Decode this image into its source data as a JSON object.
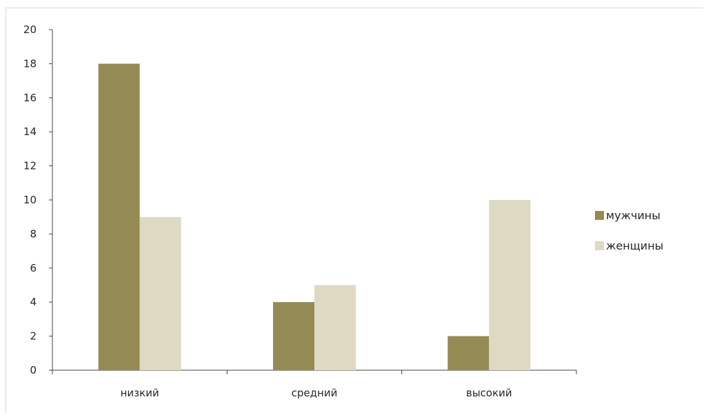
{
  "chart_data": {
    "type": "bar",
    "categories": [
      "низкий",
      "средний",
      "высокий"
    ],
    "series": [
      {
        "name": "мужчины",
        "values": [
          18,
          4,
          2
        ],
        "color": "#948a54"
      },
      {
        "name": "женщины",
        "values": [
          9,
          5,
          10
        ],
        "color": "#ddd9c3"
      }
    ],
    "ylim": [
      0,
      20
    ],
    "yticks": [
      "0",
      "2",
      "4",
      "6",
      "8",
      "10",
      "12",
      "14",
      "16",
      "18",
      "20"
    ],
    "grid": false,
    "legend_position": "right",
    "axis_color": "#404040"
  }
}
